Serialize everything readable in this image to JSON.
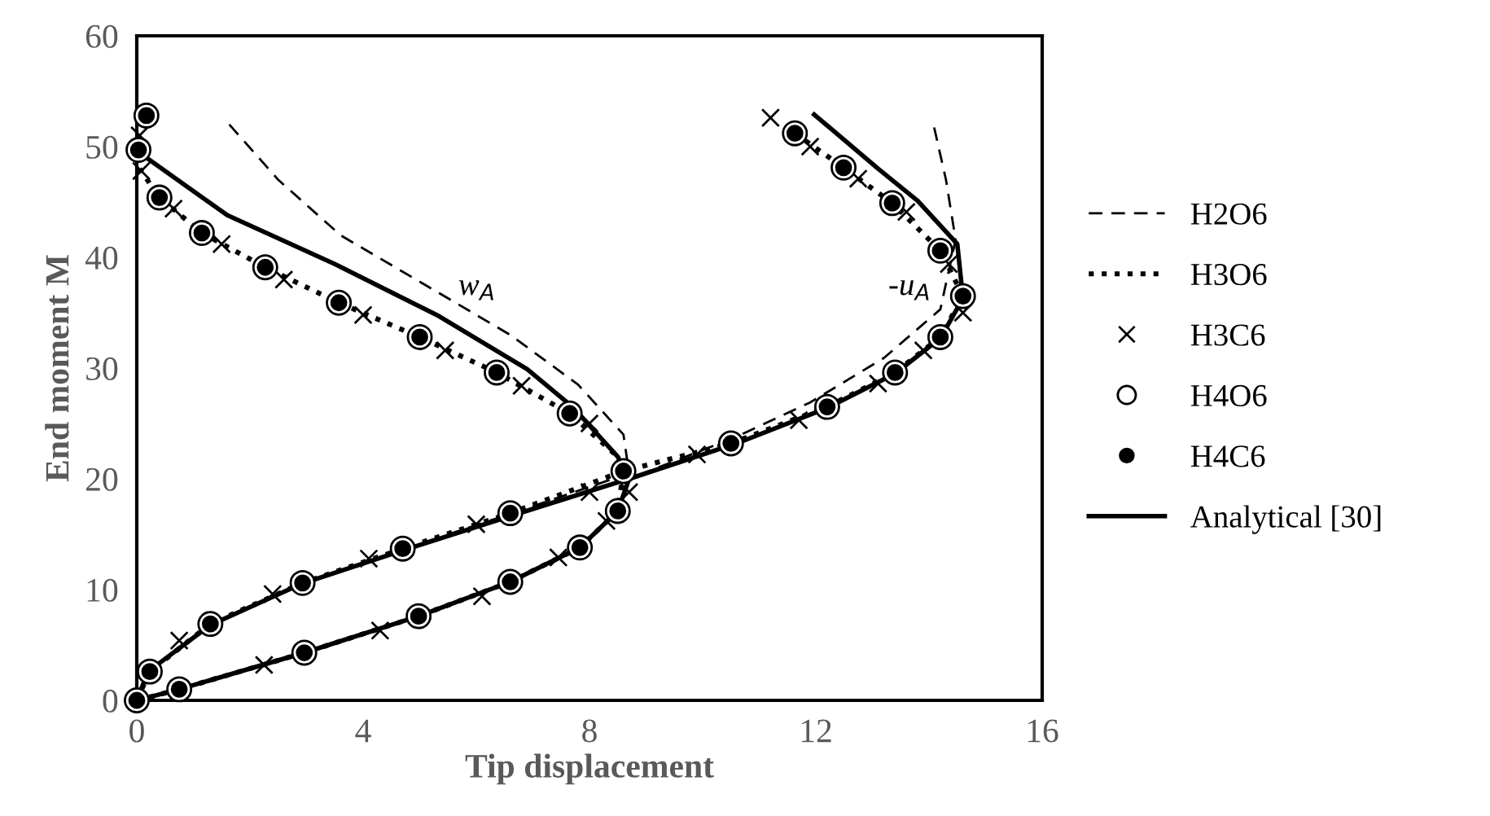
{
  "chart_data": {
    "type": "line",
    "xlabel": "Tip displacement",
    "ylabel": "End moment M",
    "xlim": [
      0,
      16
    ],
    "xticks": [
      0,
      4,
      8,
      12,
      16
    ],
    "ylim": [
      0,
      60
    ],
    "yticks": [
      0,
      10,
      20,
      30,
      40,
      50,
      60
    ],
    "grid": false,
    "legend": "right",
    "annotations": [
      "w$_{A}$",
      "-u$_{A}$"
    ],
    "series": [
      {
        "name": "H2O6",
        "line_style": "dashed",
        "color": "#000000",
        "x": [
          0,
          0.2,
          1.3,
          2.9,
          4.8,
          6.7,
          8.7,
          8.6,
          7.8,
          6.6,
          5.1,
          3.6,
          2.5,
          1.6
        ],
        "values": [
          0,
          2.6,
          6.8,
          10.5,
          13.8,
          17,
          20.5,
          24,
          28.5,
          33,
          37.5,
          42,
          47,
          52.2
        ]
      },
      {
        "line_style": "dashed",
        "color": "#000000",
        "x": [
          0,
          0.75,
          2.96,
          4.98,
          6.6,
          7.83,
          8.5,
          8.7,
          10.6,
          11.9,
          13.2,
          14.2,
          14.47,
          14.3,
          14.07
        ],
        "values": [
          0,
          1.0,
          4.3,
          7.6,
          10.7,
          13.8,
          17.1,
          20,
          23.8,
          26.9,
          30.9,
          35.3,
          41.6,
          47,
          52.2
        ]
      },
      {
        "name": "H3O6",
        "line_style": "dotted",
        "color": "#000000",
        "x": [
          0,
          0.23,
          1.3,
          2.93,
          4.7,
          6.6,
          8.6,
          8.5,
          7.65,
          6.36,
          5.0,
          3.57,
          2.27,
          1.15,
          0.4,
          0.05
        ],
        "values": [
          0,
          2.6,
          6.9,
          10.6,
          13.7,
          16.9,
          20.7,
          22,
          25.9,
          29.6,
          32.8,
          35.9,
          39.1,
          42.2,
          45.4,
          48
        ]
      },
      {
        "line_style": "dotted",
        "color": "#000000",
        "x": [
          0,
          0.75,
          2.96,
          4.98,
          6.6,
          7.83,
          8.5,
          8.6,
          10.5,
          12.2,
          13.4,
          14.2,
          14.6,
          14.2,
          13.35,
          12.49,
          11.63
        ],
        "values": [
          0,
          1.0,
          4.3,
          7.6,
          10.7,
          13.8,
          17.1,
          20.7,
          23.2,
          26.5,
          29.6,
          32.8,
          36.5,
          40.6,
          44.9,
          48.1,
          51.2
        ]
      },
      {
        "name": "H3C6",
        "type": "scatter",
        "marker": "cross",
        "color": "#000000",
        "x": [
          0.75,
          2.4,
          4.1,
          6.0,
          8.0,
          8.0,
          6.8,
          5.45,
          4.0,
          2.6,
          1.5,
          0.65,
          0.08,
          0.05,
          2.25,
          4.3,
          6.1,
          7.45,
          8.3,
          8.7,
          9.9,
          11.7,
          13.1,
          13.9,
          14.6,
          14.35,
          13.6,
          12.75,
          11.9,
          11.2
        ],
        "values": [
          5.4,
          9.6,
          12.8,
          15.9,
          18.8,
          25,
          28.4,
          31.6,
          34.8,
          38,
          41.2,
          44.4,
          47.8,
          51,
          3.2,
          6.3,
          9.4,
          12.9,
          16.2,
          18.8,
          22.2,
          25.3,
          28.6,
          31.6,
          35,
          39.4,
          44.1,
          47.1,
          50,
          52.6
        ]
      },
      {
        "name": "H4O6",
        "type": "scatter",
        "marker": "circle",
        "color": "#ffffff",
        "x": [
          0,
          0.23,
          1.3,
          2.93,
          4.7,
          6.6,
          8.6,
          7.65,
          6.36,
          5.0,
          3.57,
          2.27,
          1.15,
          0.4,
          0.03,
          0.17,
          0.75,
          2.96,
          4.98,
          6.6,
          7.83,
          8.5,
          10.5,
          12.2,
          13.4,
          14.2,
          14.6,
          14.2,
          13.35,
          12.49,
          11.63
        ],
        "values": [
          0,
          2.6,
          6.9,
          10.6,
          13.7,
          16.9,
          20.7,
          25.9,
          29.6,
          32.8,
          35.9,
          39.1,
          42.2,
          45.4,
          49.7,
          52.8,
          1.0,
          4.3,
          7.6,
          10.7,
          13.8,
          17.1,
          23.2,
          26.5,
          29.6,
          32.8,
          36.5,
          40.6,
          44.9,
          48.1,
          51.2
        ]
      },
      {
        "name": "H4C6",
        "type": "scatter",
        "marker": "circle",
        "color": "#000000",
        "x": [
          0,
          0.23,
          1.3,
          2.93,
          4.7,
          6.6,
          8.6,
          7.65,
          6.36,
          5.0,
          3.57,
          2.27,
          1.15,
          0.4,
          0.03,
          0.17,
          0.75,
          2.96,
          4.98,
          6.6,
          7.83,
          8.5,
          10.5,
          12.2,
          13.4,
          14.2,
          14.6,
          14.2,
          13.35,
          12.49,
          11.63
        ],
        "values": [
          0,
          2.6,
          6.9,
          10.6,
          13.7,
          16.9,
          20.7,
          25.9,
          29.6,
          32.8,
          35.9,
          39.1,
          42.2,
          45.4,
          49.7,
          52.8,
          1.0,
          4.3,
          7.6,
          10.7,
          13.8,
          17.1,
          23.2,
          26.5,
          29.6,
          32.8,
          36.5,
          40.6,
          44.9,
          48.1,
          51.2
        ]
      },
      {
        "name": "Analytical [30]",
        "line_style": "solid",
        "color": "#000000",
        "x": [
          0,
          0.2,
          1.3,
          2.9,
          4.8,
          6.7,
          8.7,
          8.5,
          7.7,
          6.9,
          5.3,
          3.5,
          1.6,
          0.17
        ],
        "values": [
          0,
          2.6,
          6.8,
          10.5,
          13.7,
          16.8,
          20,
          22,
          26.5,
          29.9,
          34.8,
          39.4,
          43.8,
          49
        ]
      },
      {
        "line_style": "solid",
        "color": "#000000",
        "x": [
          0,
          0.75,
          2.96,
          4.98,
          6.6,
          7.83,
          8.5,
          8.7,
          10.6,
          12.2,
          13.4,
          14.2,
          14.6,
          14.5,
          13.8,
          13.1,
          11.97
        ],
        "values": [
          0,
          1.0,
          4.3,
          7.6,
          10.7,
          13.8,
          17.1,
          20,
          23.2,
          26.4,
          29.5,
          32.7,
          36.3,
          41.2,
          45.1,
          48,
          52.9
        ]
      }
    ]
  }
}
